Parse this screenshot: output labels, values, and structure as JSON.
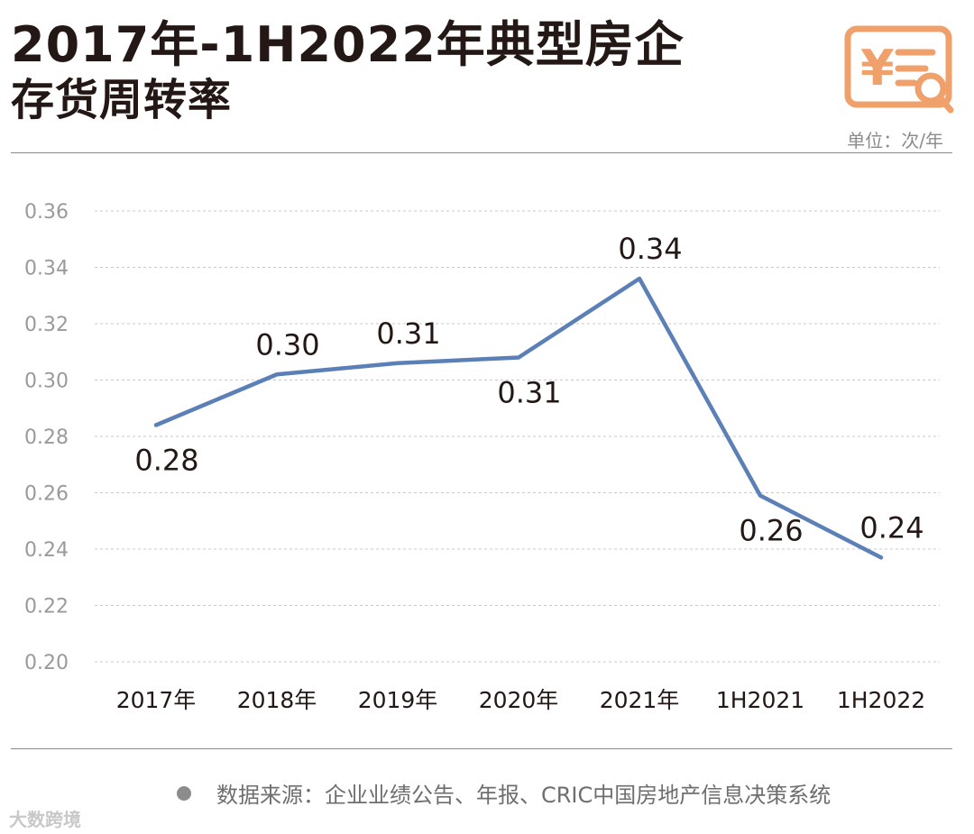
{
  "title_line1": "2017年-1H2022年典型房企",
  "title_line2": "存货周转率",
  "unit": "单位：次/年",
  "source": "数据来源：企业业绩公告、年报、CRIC中国房地产信息决策系统",
  "watermark": "大数跨境",
  "colors": {
    "line": "#5b7fb7",
    "logo": "#f0a06a",
    "title": "#231815"
  },
  "chart_data": {
    "type": "line",
    "categories": [
      "2017年",
      "2018年",
      "2019年",
      "2020年",
      "2021年",
      "1H2021",
      "1H2022"
    ],
    "series": [
      {
        "name": "存货周转率",
        "values": [
          0.284,
          0.302,
          0.306,
          0.308,
          0.336,
          0.259,
          0.237
        ]
      }
    ],
    "data_labels": [
      "0.28",
      "0.30",
      "0.31",
      "0.31",
      "0.34",
      "0.26",
      "0.24"
    ],
    "label_position": [
      "below",
      "above",
      "above",
      "below",
      "above",
      "below",
      "above"
    ],
    "yticks": [
      "0.20",
      "0.22",
      "0.24",
      "0.26",
      "0.28",
      "0.30",
      "0.32",
      "0.34",
      "0.36"
    ],
    "ylim": [
      0.2,
      0.36
    ],
    "grid": true
  }
}
